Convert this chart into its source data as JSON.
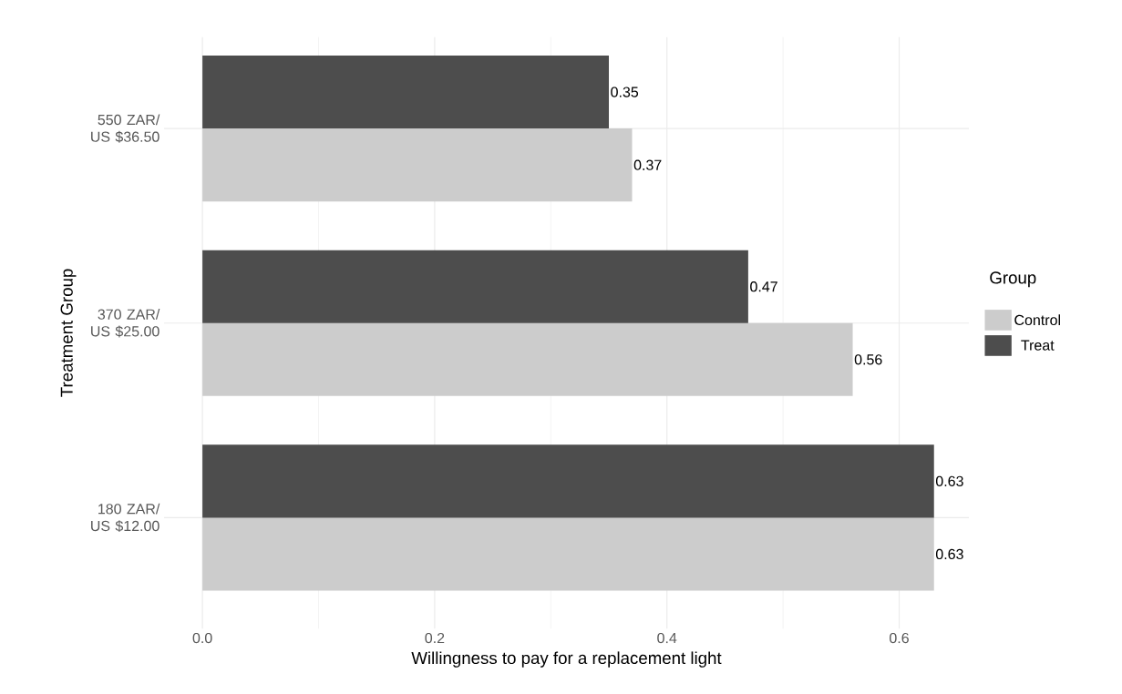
{
  "chart_data": {
    "type": "bar",
    "orientation": "horizontal",
    "xlabel": "Willingness to pay for a replacement light",
    "ylabel": "Treatment Group",
    "legend_title": "Group",
    "categories": [
      "550 ZAR/ US $36.50",
      "370 ZAR/ US $25.00",
      "180 ZAR/ US $12.00"
    ],
    "series": [
      {
        "name": "Control",
        "color": "#cccccc",
        "values": [
          0.37,
          0.56,
          0.63
        ],
        "value_labels": [
          "0.37",
          "0.56",
          "0.63"
        ]
      },
      {
        "name": "Treat",
        "color": "#4d4d4d",
        "values": [
          0.35,
          0.47,
          0.63
        ],
        "value_labels": [
          "0.35",
          "0.47",
          "0.63"
        ]
      }
    ],
    "xlim": [
      -0.033,
      0.66
    ],
    "xticks": [
      {
        "value": 0,
        "label": "0.0"
      },
      0.2,
      0.4,
      0.6
    ],
    "grid": true,
    "legend": "right"
  }
}
